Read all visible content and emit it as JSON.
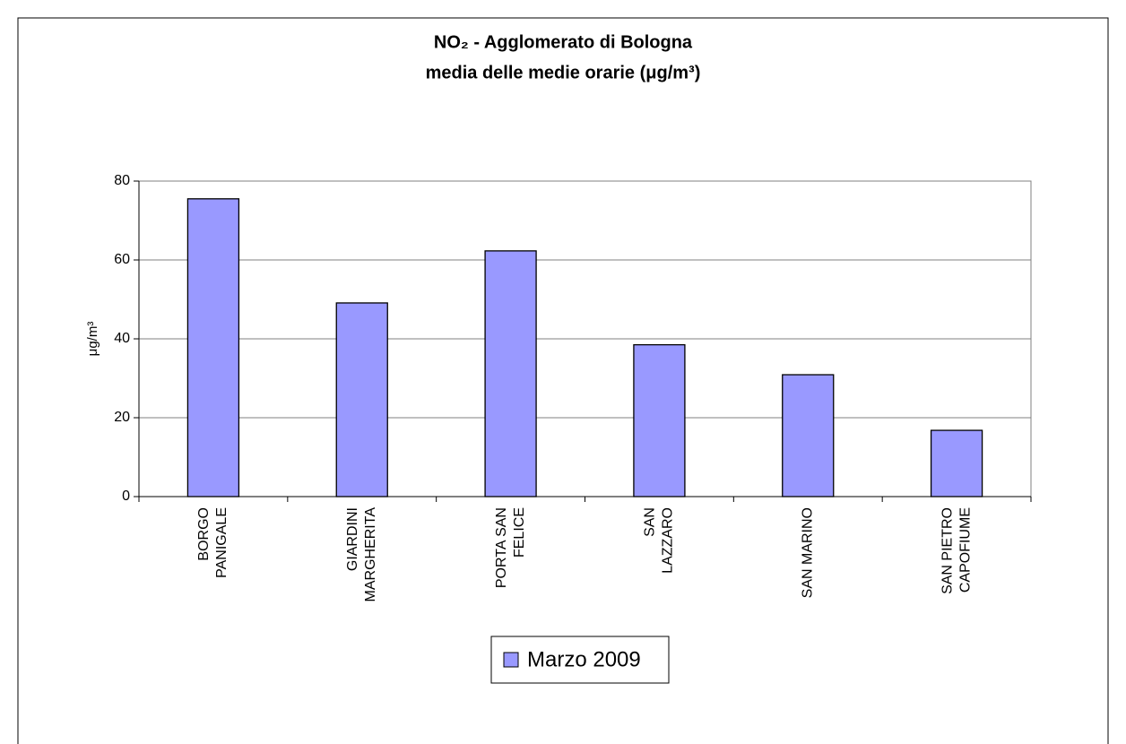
{
  "chart_data": {
    "type": "bar",
    "title": [
      "NO₂ - Agglomerato di Bologna",
      "media delle medie orarie (μg/m³)"
    ],
    "y_label": "μg/m³",
    "categories": [
      [
        "BORGO",
        "PANIGALE"
      ],
      [
        "GIARDINI",
        "MARGHERITA"
      ],
      [
        "PORTA SAN",
        "FELICE"
      ],
      [
        "SAN",
        "LAZZARO"
      ],
      [
        "SAN MARINO"
      ],
      [
        "SAN PIETRO",
        "CAPOFIUME"
      ]
    ],
    "series": [
      {
        "name": "Marzo 2009",
        "color": "#9999ff",
        "values": [
          75.5,
          49.1,
          62.3,
          38.5,
          30.9,
          16.8
        ]
      }
    ],
    "ylim": [
      0,
      80
    ],
    "yticks": [
      0,
      20,
      40,
      60,
      80
    ],
    "grid": true,
    "legend": "bottom"
  }
}
